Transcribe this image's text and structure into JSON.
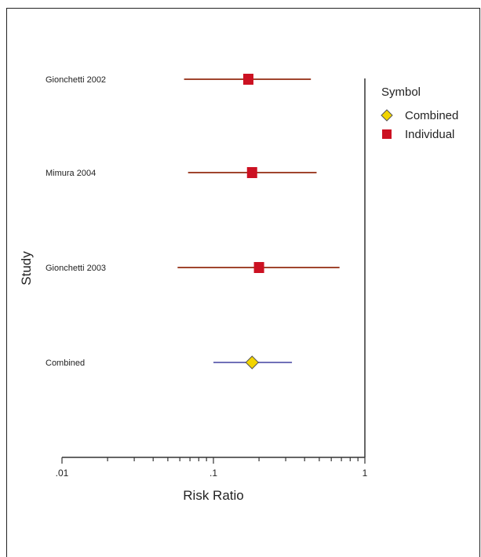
{
  "chart_data": {
    "type": "forest",
    "xlabel": "Risk Ratio",
    "ylabel": "Study",
    "x_scale": "log",
    "xlim": [
      0.01,
      1
    ],
    "x_ticks": [
      {
        "value": 0.01,
        "label": ".01"
      },
      {
        "value": 0.1,
        "label": ".1"
      },
      {
        "value": 1,
        "label": "1"
      }
    ],
    "studies": [
      {
        "label": "Gionchetti 2002",
        "estimate": 0.17,
        "ci_low": 0.064,
        "ci_high": 0.44,
        "symbol": "Individual"
      },
      {
        "label": "Mimura 2004",
        "estimate": 0.18,
        "ci_low": 0.068,
        "ci_high": 0.48,
        "symbol": "Individual"
      },
      {
        "label": "Gionchetti 2003",
        "estimate": 0.2,
        "ci_low": 0.058,
        "ci_high": 0.68,
        "symbol": "Individual"
      },
      {
        "label": "Combined",
        "estimate": 0.18,
        "ci_low": 0.1,
        "ci_high": 0.33,
        "symbol": "Combined"
      }
    ],
    "legend": {
      "title": "Symbol",
      "items": [
        {
          "name": "Combined",
          "shape": "diamond",
          "color": "#f2d400"
        },
        {
          "name": "Individual",
          "shape": "square",
          "color": "#cc1122"
        }
      ]
    },
    "colors": {
      "individual_line": "#a0452e",
      "combined_line": "#7070b8"
    }
  }
}
